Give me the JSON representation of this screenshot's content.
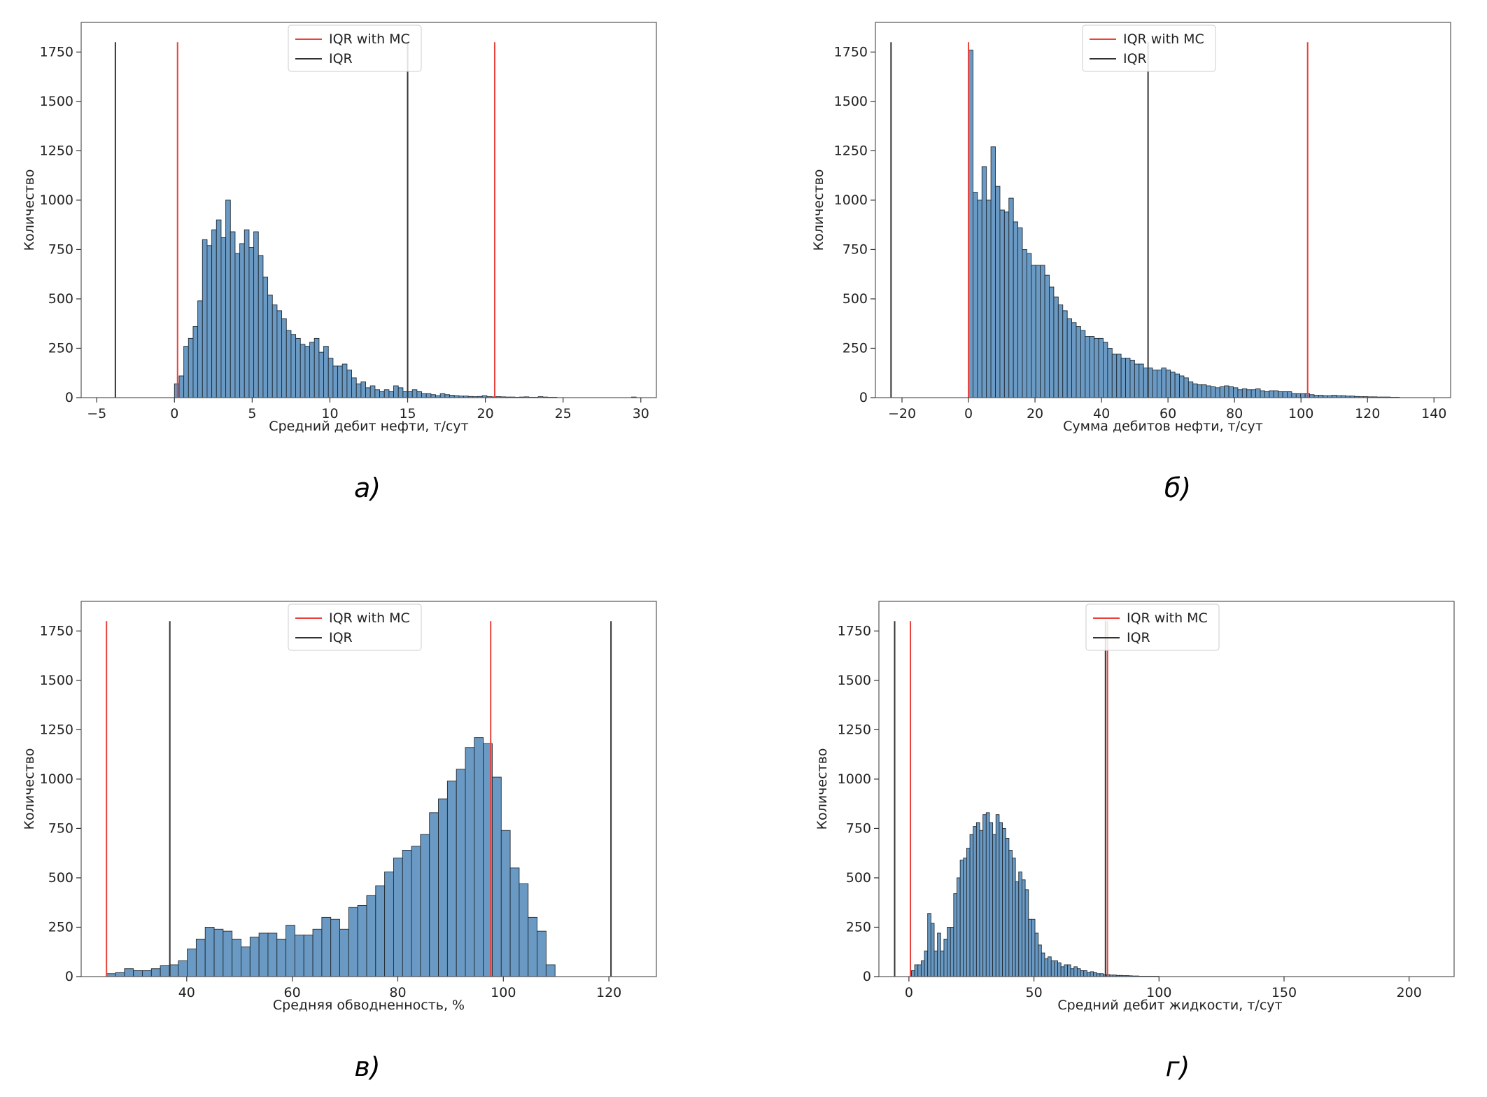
{
  "colors": {
    "bar_fill": "#6a9ac4",
    "bar_edge": "#1f2a33",
    "iqr_mc_line": "#e8423b",
    "iqr_line": "#333333"
  },
  "chart_data": [
    {
      "type": "histogram",
      "caption": "а)",
      "xlabel": "Средний дебит нефти, т/сут",
      "ylabel": "Количество",
      "xlim": [
        -6,
        31
      ],
      "ylim": [
        0,
        1900
      ],
      "xticks": [
        -5,
        0,
        5,
        10,
        15,
        20,
        25,
        30
      ],
      "yticks": [
        0,
        250,
        500,
        750,
        1000,
        1250,
        1500,
        1750
      ],
      "legend": {
        "position": "top-center",
        "entries": [
          "IQR with MC",
          "IQR"
        ]
      },
      "vlines": {
        "IQR with MC": [
          0.2,
          20.6
        ],
        "IQR": [
          -3.8,
          15.0
        ]
      },
      "vline_height": 1800,
      "bins": {
        "start": 0,
        "width": 0.3
      },
      "values": [
        70,
        110,
        260,
        300,
        360,
        490,
        800,
        770,
        850,
        900,
        810,
        1000,
        840,
        730,
        780,
        850,
        760,
        840,
        720,
        610,
        520,
        470,
        440,
        400,
        340,
        320,
        300,
        270,
        260,
        280,
        300,
        230,
        260,
        200,
        160,
        160,
        170,
        140,
        100,
        70,
        80,
        50,
        60,
        40,
        30,
        40,
        30,
        60,
        50,
        30,
        30,
        40,
        30,
        20,
        20,
        15,
        10,
        20,
        15,
        12,
        10,
        8,
        8,
        6,
        5,
        6,
        10,
        5,
        4,
        5,
        4,
        3,
        3,
        2,
        3,
        4,
        2,
        2,
        5,
        3,
        2,
        2,
        0,
        0,
        0,
        0,
        0,
        0,
        0,
        0,
        0,
        0,
        0,
        0,
        0,
        0,
        0,
        0,
        3
      ],
      "grid": false
    },
    {
      "type": "histogram",
      "caption": "б)",
      "xlabel": "Сумма дебитов нефти, т/сут",
      "ylabel": "Количество",
      "xlim": [
        -28,
        145
      ],
      "ylim": [
        0,
        1900
      ],
      "xticks": [
        -20,
        0,
        20,
        40,
        60,
        80,
        100,
        120,
        140
      ],
      "yticks": [
        0,
        250,
        500,
        750,
        1000,
        1250,
        1500,
        1750
      ],
      "legend": {
        "position": "top-center",
        "entries": [
          "IQR with MC",
          "IQR"
        ]
      },
      "vlines": {
        "IQR with MC": [
          0.0,
          102.0
        ],
        "IQR": [
          -23.3,
          54.0
        ]
      },
      "vline_height": 1800,
      "bins": {
        "start": 0,
        "width": 1.35
      },
      "values": [
        1760,
        1040,
        1000,
        1170,
        1000,
        1270,
        1070,
        950,
        940,
        1010,
        890,
        860,
        750,
        730,
        670,
        670,
        670,
        620,
        560,
        510,
        470,
        440,
        400,
        380,
        360,
        340,
        310,
        310,
        300,
        300,
        280,
        250,
        220,
        220,
        200,
        200,
        190,
        170,
        170,
        150,
        150,
        140,
        140,
        150,
        140,
        130,
        120,
        110,
        100,
        80,
        70,
        65,
        65,
        60,
        55,
        50,
        55,
        60,
        55,
        50,
        40,
        45,
        40,
        40,
        45,
        35,
        30,
        35,
        35,
        30,
        30,
        30,
        20,
        20,
        20,
        20,
        15,
        12,
        12,
        10,
        10,
        12,
        10,
        10,
        8,
        8,
        6,
        5,
        5,
        4,
        4,
        3,
        3,
        3,
        2,
        2
      ],
      "grid": false
    },
    {
      "type": "histogram",
      "caption": "в)",
      "xlabel": "Средняя  обводненность, %",
      "ylabel": "Количество",
      "xlim": [
        20,
        129
      ],
      "ylim": [
        0,
        1900
      ],
      "xticks": [
        40,
        60,
        80,
        100,
        120
      ],
      "yticks": [
        0,
        250,
        500,
        750,
        1000,
        1250,
        1500,
        1750
      ],
      "legend": {
        "position": "top-center",
        "entries": [
          "IQR with MC",
          "IQR"
        ]
      },
      "vlines": {
        "IQR with MC": [
          24.8,
          97.6
        ],
        "IQR": [
          36.8,
          120.4
        ]
      },
      "vline_height": 1800,
      "bins": {
        "start": 24.8,
        "width": 1.7
      },
      "values": [
        15,
        20,
        40,
        30,
        30,
        40,
        55,
        60,
        80,
        140,
        190,
        250,
        240,
        230,
        190,
        150,
        200,
        220,
        220,
        190,
        260,
        210,
        210,
        240,
        300,
        290,
        240,
        350,
        360,
        410,
        460,
        530,
        600,
        640,
        660,
        720,
        830,
        900,
        990,
        1050,
        1160,
        1210,
        1180,
        1010,
        740,
        550,
        470,
        300,
        230,
        60
      ],
      "grid": false
    },
    {
      "type": "histogram",
      "caption": "г)",
      "xlabel": "Средний дебит жидкости, т/сут",
      "ylabel": "Количество",
      "xlim": [
        -12,
        218
      ],
      "ylim": [
        0,
        1900
      ],
      "xticks": [
        0,
        50,
        100,
        150,
        200
      ],
      "yticks": [
        0,
        250,
        500,
        750,
        1000,
        1250,
        1500,
        1750
      ],
      "legend": {
        "position": "top-center",
        "entries": [
          "IQR with MC",
          "IQR"
        ]
      },
      "vlines": {
        "IQR with MC": [
          0.6,
          79.4
        ],
        "IQR": [
          -5.7,
          78.6
        ]
      },
      "vline_height": 1800,
      "bins": {
        "start": 1.0,
        "width": 1.3
      },
      "values": [
        30,
        60,
        60,
        80,
        130,
        320,
        270,
        130,
        220,
        130,
        190,
        250,
        250,
        420,
        500,
        590,
        600,
        650,
        720,
        760,
        780,
        740,
        820,
        830,
        780,
        720,
        820,
        780,
        750,
        700,
        640,
        600,
        480,
        530,
        490,
        440,
        290,
        290,
        220,
        160,
        120,
        90,
        100,
        80,
        80,
        70,
        50,
        60,
        60,
        40,
        50,
        40,
        30,
        30,
        20,
        25,
        20,
        15,
        15,
        10,
        10,
        8,
        8,
        6,
        6,
        5,
        5,
        4,
        3,
        3,
        2,
        2,
        2,
        2,
        2,
        2
      ],
      "grid": false
    }
  ]
}
